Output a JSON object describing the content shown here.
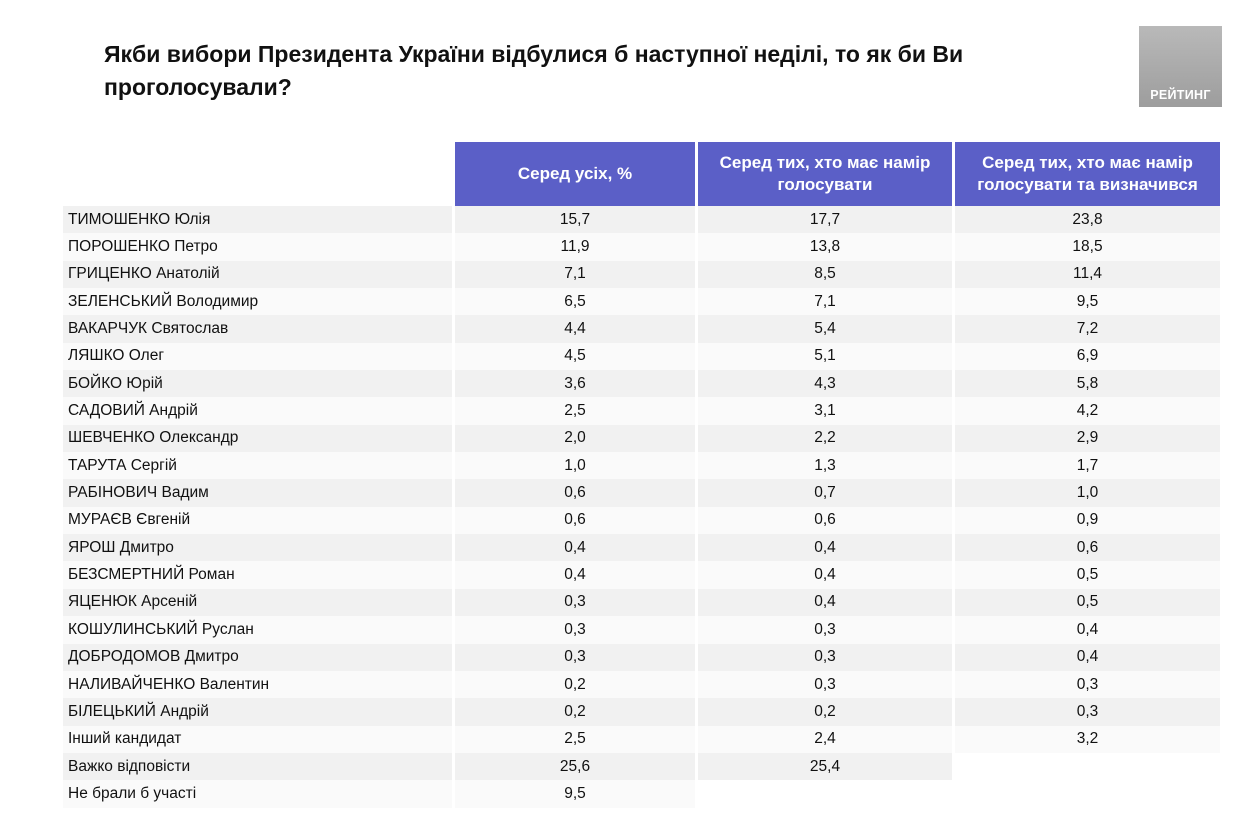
{
  "title": "Якби вибори Президента України відбулися б наступної неділі, то як би Ви проголосували?",
  "logo_text": "РЕЙТИНГ",
  "colors": {
    "header_bg": "#5b5fc7",
    "row_odd": "#f1f1f1",
    "row_even": "#fafafa",
    "logo_bg": "#aaaaaa"
  },
  "table": {
    "headers": [
      "Серед усіх, %",
      "Серед тих, хто має намір голосувати",
      "Серед тих, хто має намір голосувати та визначився"
    ],
    "rows": [
      {
        "name": "ТИМОШЕНКО Юлія",
        "all": "15,7",
        "voters": "17,7",
        "decided": "23,8"
      },
      {
        "name": "ПОРОШЕНКО Петро",
        "all": "11,9",
        "voters": "13,8",
        "decided": "18,5"
      },
      {
        "name": "ГРИЦЕНКО Анатолій",
        "all": "7,1",
        "voters": "8,5",
        "decided": "11,4"
      },
      {
        "name": "ЗЕЛЕНСЬКИЙ Володимир",
        "all": "6,5",
        "voters": "7,1",
        "decided": "9,5"
      },
      {
        "name": "ВАКАРЧУК Святослав",
        "all": "4,4",
        "voters": "5,4",
        "decided": "7,2"
      },
      {
        "name": "ЛЯШКО Олег",
        "all": "4,5",
        "voters": "5,1",
        "decided": "6,9"
      },
      {
        "name": "БОЙКО Юрій",
        "all": "3,6",
        "voters": "4,3",
        "decided": "5,8"
      },
      {
        "name": "САДОВИЙ Андрій",
        "all": "2,5",
        "voters": "3,1",
        "decided": "4,2"
      },
      {
        "name": "ШЕВЧЕНКО Олександр",
        "all": "2,0",
        "voters": "2,2",
        "decided": "2,9"
      },
      {
        "name": "ТАРУТА Сергій",
        "all": "1,0",
        "voters": "1,3",
        "decided": "1,7"
      },
      {
        "name": "РАБІНОВИЧ Вадим",
        "all": "0,6",
        "voters": "0,7",
        "decided": "1,0"
      },
      {
        "name": "МУРАЄВ Євгеній",
        "all": "0,6",
        "voters": "0,6",
        "decided": "0,9"
      },
      {
        "name": "ЯРОШ Дмитро",
        "all": "0,4",
        "voters": "0,4",
        "decided": "0,6"
      },
      {
        "name": "БЕЗСМЕРТНИЙ Роман",
        "all": "0,4",
        "voters": "0,4",
        "decided": "0,5"
      },
      {
        "name": "ЯЦЕНЮК Арсеній",
        "all": "0,3",
        "voters": "0,4",
        "decided": "0,5"
      },
      {
        "name": "КОШУЛИНСЬКИЙ Руслан",
        "all": "0,3",
        "voters": "0,3",
        "decided": "0,4"
      },
      {
        "name": "ДОБРОДОМОВ Дмитро",
        "all": "0,3",
        "voters": "0,3",
        "decided": "0,4"
      },
      {
        "name": "НАЛИВАЙЧЕНКО Валентин",
        "all": "0,2",
        "voters": "0,3",
        "decided": "0,3"
      },
      {
        "name": "БІЛЕЦЬКИЙ Андрій",
        "all": "0,2",
        "voters": "0,2",
        "decided": "0,3"
      },
      {
        "name": "Інший кандидат",
        "all": "2,5",
        "voters": "2,4",
        "decided": "3,2"
      },
      {
        "name": "Важко відповісти",
        "all": "25,6",
        "voters": "25,4",
        "decided": null
      },
      {
        "name": "Не брали б участі",
        "all": "9,5",
        "voters": null,
        "decided": null
      }
    ]
  }
}
